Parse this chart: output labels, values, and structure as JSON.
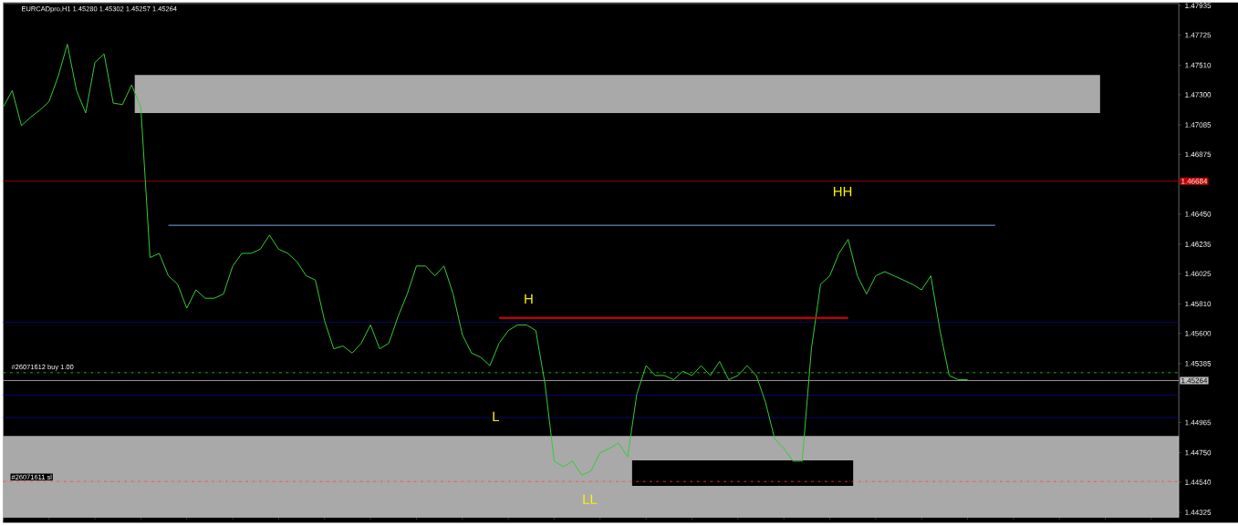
{
  "chart_data": {
    "type": "line",
    "title": "EURCADpro,H1  1.45280 1.45302 1.45257 1.45264",
    "categories": [
      null,
      null,
      null,
      null,
      null,
      null,
      null,
      null,
      null,
      null,
      null,
      null,
      null,
      null,
      null,
      null,
      null,
      null,
      null,
      null,
      null,
      null,
      null,
      null,
      null,
      null,
      null,
      null,
      null,
      null,
      null,
      null,
      null,
      null,
      null,
      null,
      null,
      null,
      null,
      null,
      null,
      null,
      null,
      null,
      null,
      null,
      null,
      null,
      null,
      null,
      null,
      null,
      null,
      null,
      null,
      null,
      null,
      null,
      null,
      null,
      null,
      null,
      null,
      null,
      null,
      null,
      null,
      null,
      null,
      null,
      null,
      null,
      null,
      null,
      null,
      null,
      null,
      null,
      null,
      null,
      null,
      null,
      null,
      null,
      null,
      null,
      null,
      null,
      null,
      null,
      null,
      null,
      null,
      null,
      null,
      null,
      null,
      null,
      null,
      null,
      null,
      null,
      null,
      null,
      null,
      null,
      null,
      null,
      null,
      null,
      null,
      null,
      null,
      null,
      null,
      null,
      null,
      null,
      null,
      null,
      null,
      null,
      null,
      null,
      null,
      null,
      null,
      null,
      null
    ],
    "series": [
      {
        "color": "#32cd32",
        "values": [
          1.4721,
          1.4733,
          1.4708,
          1.4714,
          1.4719,
          1.4725,
          1.4743,
          1.4766,
          1.4733,
          1.4717,
          1.4753,
          1.4759,
          1.4724,
          1.4723,
          1.4737,
          1.4721,
          1.4614,
          1.4617,
          1.4601,
          1.4595,
          1.4578,
          1.4591,
          1.4585,
          1.4585,
          1.4588,
          1.4608,
          1.4617,
          1.4617,
          1.462,
          1.463,
          1.462,
          1.4617,
          1.4611,
          1.4601,
          1.4598,
          1.4569,
          1.4549,
          1.4551,
          1.4546,
          1.4553,
          1.4566,
          1.4549,
          1.4553,
          1.4572,
          1.4588,
          1.4608,
          1.4608,
          1.4601,
          1.4608,
          1.4588,
          1.4559,
          1.4546,
          1.4543,
          1.4537,
          1.4553,
          1.4562,
          1.4566,
          1.4566,
          1.4562,
          1.4524,
          1.4469,
          1.4465,
          1.4469,
          1.4459,
          1.4462,
          1.4475,
          1.4478,
          1.4482,
          1.4472,
          1.4517,
          1.4537,
          1.453,
          1.453,
          1.4527,
          1.4533,
          1.453,
          1.4537,
          1.453,
          1.454,
          1.4527,
          1.453,
          1.4537,
          1.453,
          1.4511,
          1.4485,
          1.4478,
          1.4469,
          1.4469,
          1.4549,
          1.4595,
          1.4601,
          1.4617,
          1.4627,
          1.4601,
          1.4588,
          1.4601,
          1.4604,
          1.4601,
          1.4598,
          1.4595,
          1.4591,
          1.4601,
          1.4562,
          1.453,
          1.4527,
          1.4527,
          null,
          null,
          null,
          null,
          null,
          null,
          null,
          null,
          null,
          null,
          null,
          null,
          null,
          null,
          null,
          null,
          null,
          null,
          null,
          null,
          null,
          null,
          null
        ]
      },
      {
        "color": "#7aa6ee",
        "values": [
          null,
          null,
          null,
          null,
          null,
          null,
          null,
          null,
          null,
          null,
          null,
          null,
          null,
          null,
          null,
          null,
          null,
          null,
          1.4637,
          1.4637,
          1.4637,
          1.4637,
          1.4637,
          1.4637,
          1.4637,
          1.4637,
          1.4637,
          1.4637,
          1.4637,
          1.4637,
          1.4637,
          1.4637,
          1.4637,
          1.4637,
          1.4637,
          1.4637,
          1.4637,
          1.4637,
          1.4637,
          1.4637,
          1.4637,
          1.4637,
          1.4637,
          1.4637,
          1.4637,
          1.4637,
          1.4637,
          1.4637,
          1.4637,
          1.4637,
          1.4637,
          1.4637,
          1.4637,
          1.4637,
          1.4637,
          1.4637,
          1.4637,
          1.4637,
          1.4637,
          1.4637,
          1.4637,
          1.4637,
          1.4637,
          1.4637,
          1.4637,
          1.4637,
          1.4637,
          1.4637,
          1.4637,
          1.4637,
          1.4637,
          1.4637,
          1.4637,
          1.4637,
          1.4637,
          1.4637,
          1.4637,
          1.4637,
          1.4637,
          1.4637,
          1.4637,
          1.4637,
          1.4637,
          1.4637,
          1.4637,
          1.4637,
          1.4637,
          1.4637,
          1.4637,
          1.4637,
          1.4637,
          1.4637,
          1.4637,
          1.4637,
          1.4637,
          1.4637,
          1.4637,
          1.4637,
          1.4637,
          1.4637,
          1.4637,
          1.4637,
          1.4637,
          1.4637,
          1.4637,
          1.4637,
          1.4637,
          1.4637,
          1.4637,
          null,
          null,
          null,
          null,
          null,
          null,
          null,
          null,
          null,
          null,
          null,
          null,
          null,
          null,
          null,
          null,
          null,
          null,
          null,
          null
        ]
      },
      {
        "color": "#e00000",
        "values": [
          null,
          null,
          null,
          null,
          null,
          null,
          null,
          null,
          null,
          null,
          null,
          null,
          null,
          null,
          null,
          null,
          null,
          null,
          null,
          null,
          null,
          null,
          null,
          null,
          null,
          null,
          null,
          null,
          null,
          null,
          null,
          null,
          null,
          null,
          null,
          null,
          null,
          null,
          null,
          null,
          null,
          null,
          null,
          null,
          null,
          null,
          null,
          null,
          null,
          null,
          null,
          null,
          null,
          null,
          1.4571,
          1.4571,
          1.4571,
          1.4571,
          1.4571,
          1.4571,
          1.4571,
          1.4571,
          1.4571,
          1.4571,
          1.4571,
          1.4571,
          1.4571,
          1.4571,
          1.4571,
          1.4571,
          1.4571,
          1.4571,
          1.4571,
          1.4571,
          1.4571,
          1.4571,
          1.4571,
          1.4571,
          1.4571,
          1.4571,
          1.4571,
          1.4571,
          1.4571,
          1.4571,
          1.4571,
          1.4571,
          1.4571,
          1.4571,
          1.4571,
          1.4571,
          1.4571,
          1.4571,
          1.4571,
          null,
          null,
          null,
          null,
          null,
          null,
          null,
          null,
          null,
          null,
          null,
          null,
          null,
          null,
          null,
          null,
          null,
          null,
          null,
          null,
          null,
          null,
          null,
          null,
          null,
          null,
          null,
          null,
          null,
          null,
          null,
          null,
          null,
          null,
          null,
          null
        ]
      }
    ],
    "ylim": [
      1.4429,
      1.4795
    ],
    "yticks": [
      1.47935,
      1.47725,
      {
        "value": 1.4751,
        "label": "1.47510"
      },
      {
        "value": 1.473,
        "label": "1.47300"
      },
      1.47085,
      1.46875,
      {
        "value": 1.4645,
        "label": "1.46450"
      },
      1.46235,
      1.46025,
      {
        "value": 1.4581,
        "label": "1.45810"
      },
      {
        "value": 1.456,
        "label": "1.45600"
      },
      1.45385,
      1.44965,
      {
        "value": 1.4475,
        "label": "1.44750"
      },
      {
        "value": 1.4454,
        "label": "1.44540"
      },
      1.44325
    ],
    "tick_labels": "y",
    "bands": [
      {
        "axis": "y",
        "from": 1.4429,
        "to": 1.4487,
        "color": "#a9a9a9"
      }
    ],
    "ref_lines": [
      {
        "axis": "y",
        "value": 1.46684,
        "label": "1.46684",
        "color": "#c00000",
        "line_style": "solid"
      },
      {
        "axis": "y",
        "value": 1.4568,
        "color": "#0a0a8c",
        "line_style": "solid"
      },
      {
        "axis": "y",
        "value": 1.4532,
        "label": "#26071612 buy 1.00",
        "color": "#32cd32",
        "line_style": "dashed"
      },
      {
        "axis": "y",
        "value": 1.45264,
        "label": "1.45264",
        "color": "#c0c0c0",
        "line_style": "solid"
      },
      {
        "axis": "y",
        "value": 1.4516,
        "color": "#0a0a8c",
        "line_style": "solid"
      },
      {
        "axis": "y",
        "value": 1.45,
        "color": "#0a0a8c",
        "line_style": "solid"
      },
      {
        "axis": "y",
        "value": 1.44545,
        "label": "#26071611 sl",
        "color": "#ff4040",
        "line_style": "dashed"
      }
    ],
    "annotations": [
      "H",
      "L",
      "LL",
      "HH"
    ]
  }
}
